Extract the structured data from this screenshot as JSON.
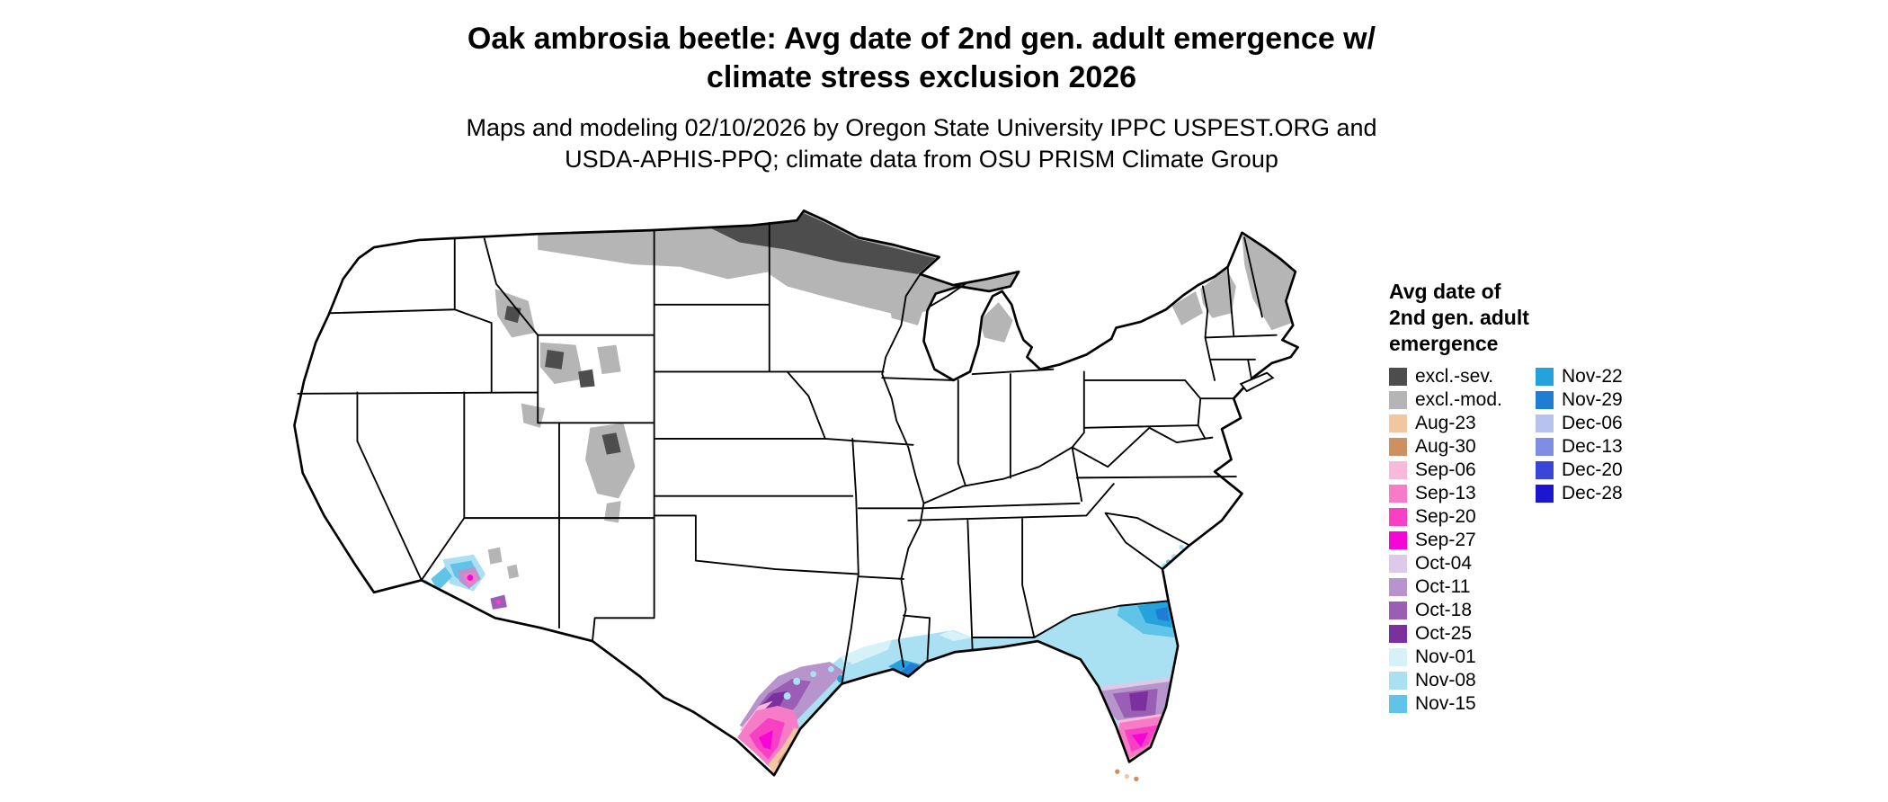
{
  "header": {
    "title_line1": "Oak ambrosia beetle: Avg date of 2nd gen. adult emergence w/",
    "title_line2": "climate stress exclusion 2026",
    "subtitle_line1": "Maps and modeling 02/10/2026 by Oregon State University IPPC USPEST.ORG and",
    "subtitle_line2": "USDA-APHIS-PPQ; climate data from OSU PRISM Climate Group"
  },
  "legend": {
    "title_lines": [
      "Avg date of",
      "2nd gen. adult",
      "emergence"
    ],
    "column1": [
      {
        "label": "excl.-sev.",
        "color": "#4d4d4d"
      },
      {
        "label": "excl.-mod.",
        "color": "#b5b5b5"
      },
      {
        "label": "Aug-23",
        "color": "#f3c6a2"
      },
      {
        "label": "Aug-30",
        "color": "#cd9060"
      },
      {
        "label": "Sep-06",
        "color": "#f9bada"
      },
      {
        "label": "Sep-13",
        "color": "#f77cc8"
      },
      {
        "label": "Sep-20",
        "color": "#f840c4"
      },
      {
        "label": "Sep-27",
        "color": "#f606d6"
      },
      {
        "label": "Oct-04",
        "color": "#dccae8"
      },
      {
        "label": "Oct-11",
        "color": "#b795cc"
      },
      {
        "label": "Oct-18",
        "color": "#9a5fb5"
      },
      {
        "label": "Oct-25",
        "color": "#7c2f9f"
      },
      {
        "label": "Nov-01",
        "color": "#d6f1f8"
      },
      {
        "label": "Nov-08",
        "color": "#a9e1f3"
      },
      {
        "label": "Nov-15",
        "color": "#5fc4e7"
      }
    ],
    "column2": [
      {
        "label": "Nov-22",
        "color": "#25a2dc"
      },
      {
        "label": "Nov-29",
        "color": "#1f7ed4"
      },
      {
        "label": "Dec-06",
        "color": "#b7c3ec"
      },
      {
        "label": "Dec-13",
        "color": "#7e8ee5"
      },
      {
        "label": "Dec-20",
        "color": "#3a46da"
      },
      {
        "label": "Dec-28",
        "color": "#1c16d0"
      }
    ]
  }
}
